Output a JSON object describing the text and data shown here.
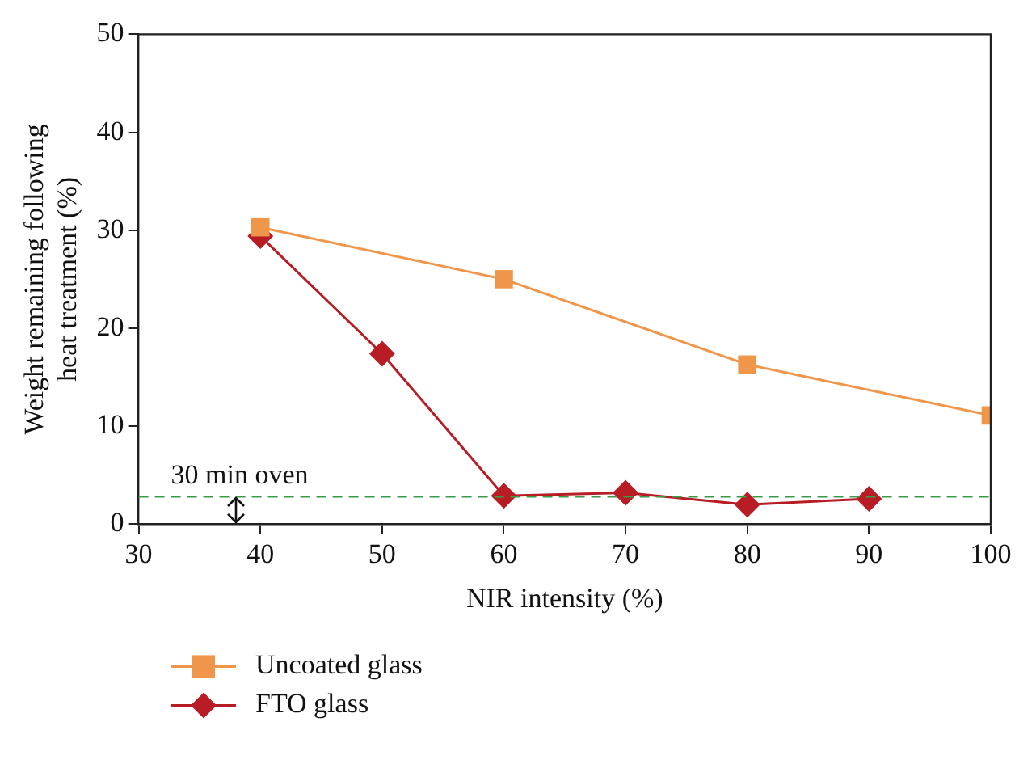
{
  "chart_data": {
    "type": "line",
    "xlabel": "NIR intensity (%)",
    "ylabel": "Weight remaining following heat treatment (%)",
    "x": [
      40,
      60,
      80,
      100
    ],
    "series": [
      {
        "name": "Uncoated glass",
        "color": "#f0964a",
        "marker": "square",
        "values": [
          30.3,
          25.0,
          16.3,
          11.1
        ]
      },
      {
        "name": "FTO glass",
        "color": "#b81c24",
        "marker": "diamond",
        "x": [
          40,
          50,
          60,
          70,
          80,
          90
        ],
        "values": [
          29.4,
          17.4,
          2.9,
          3.2,
          2.0,
          2.6
        ]
      }
    ],
    "xlim": [
      30,
      100
    ],
    "xticks": [
      30,
      40,
      50,
      60,
      70,
      80,
      90,
      100
    ],
    "ylim": [
      0,
      50
    ],
    "yticks": [
      0,
      10,
      20,
      30,
      40,
      50
    ],
    "ref_lines": [
      {
        "axis": "y",
        "value": 2.8,
        "label": "30 min oven",
        "color": "#3a9a48",
        "line_style": "dashed"
      }
    ],
    "legend": "bottom",
    "line_style": "solid"
  }
}
